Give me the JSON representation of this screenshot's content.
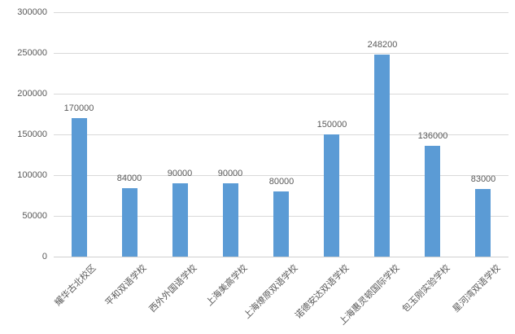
{
  "chart": {
    "bar_color": "#5B9BD5",
    "grid_color": "#D9D9D9",
    "axis_line_color": "#D0D0D0",
    "text_color": "#595959"
  },
  "chart_data": {
    "type": "bar",
    "title": "",
    "xlabel": "",
    "ylabel": "",
    "categories": [
      "耀华古北校区",
      "平和双语学校",
      "西外外国语学校",
      "上海美高学校",
      "上海燎原双语学校",
      "诺德安达双语学校",
      "上海惠灵顿国际学校",
      "包玉刚实验学校",
      "星河湾双语学校"
    ],
    "values": [
      170000,
      84000,
      90000,
      90000,
      80000,
      150000,
      248200,
      136000,
      83000
    ],
    "value_labels": [
      "170000",
      "84000",
      "90000",
      "90000",
      "80000",
      "150000",
      "248200",
      "136000",
      "83000"
    ],
    "ylim": [
      0,
      300000
    ],
    "yticks": [
      0,
      50000,
      100000,
      150000,
      200000,
      250000,
      300000
    ],
    "ytick_labels": [
      "0",
      "50000",
      "100000",
      "150000",
      "200000",
      "250000",
      "300000"
    ],
    "grid": true,
    "legend": false,
    "bar_value_labels_shown": true,
    "x_labels_rotation_deg": 45
  }
}
